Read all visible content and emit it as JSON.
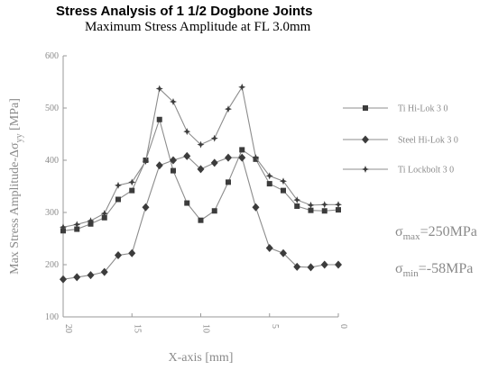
{
  "chart_data": {
    "type": "line",
    "title": "Stress Analysis of 1 1/2 Dogbone Joints",
    "subtitle": "Maximum Stress Amplitude at FL 3.0mm",
    "xlabel": "X-axis [mm]",
    "ylabel_main": "Max Stress Amplitude-Δσ",
    "ylabel_sub": "yy",
    "ylabel_unit": " [MPa]",
    "x_reversed": true,
    "xlim": [
      0,
      20
    ],
    "ylim": [
      100,
      600
    ],
    "x_ticks": [
      0,
      5,
      10,
      15,
      20
    ],
    "y_ticks": [
      100,
      200,
      300,
      400,
      500,
      600
    ],
    "grid": false,
    "legend_position": "right",
    "series": [
      {
        "name": "Ti Hi-Lok 3 0",
        "marker": "square",
        "x": [
          20,
          19,
          18,
          17,
          16,
          15,
          14,
          13,
          12,
          11,
          10,
          9,
          8,
          7,
          6,
          5,
          4,
          3,
          2,
          1,
          0
        ],
        "y": [
          265,
          268,
          278,
          290,
          325,
          342,
          400,
          478,
          380,
          318,
          285,
          303,
          358,
          420,
          402,
          355,
          342,
          312,
          304,
          303,
          305
        ]
      },
      {
        "name": "Steel Hi-Lok 3 0",
        "marker": "diamond",
        "x": [
          20,
          19,
          18,
          17,
          16,
          15,
          14,
          13,
          12,
          11,
          10,
          9,
          8,
          7,
          6,
          5,
          4,
          3,
          2,
          1,
          0
        ],
        "y": [
          172,
          176,
          180,
          186,
          218,
          222,
          310,
          390,
          400,
          408,
          383,
          395,
          405,
          405,
          310,
          232,
          222,
          196,
          195,
          200,
          200
        ]
      },
      {
        "name": "Ti Lockbolt 3 0",
        "marker": "star",
        "x": [
          20,
          19,
          18,
          17,
          16,
          15,
          14,
          13,
          12,
          11,
          10,
          9,
          8,
          7,
          6,
          5,
          4,
          3,
          2,
          1,
          0
        ],
        "y": [
          272,
          277,
          284,
          298,
          352,
          358,
          398,
          537,
          512,
          455,
          430,
          442,
          498,
          540,
          405,
          370,
          360,
          324,
          314,
          315,
          315
        ]
      }
    ],
    "annotations": [
      {
        "symbol": "σ",
        "sub": "max",
        "value": "=250MPa"
      },
      {
        "symbol": "σ",
        "sub": "min",
        "value": "=-58MPa"
      }
    ]
  }
}
